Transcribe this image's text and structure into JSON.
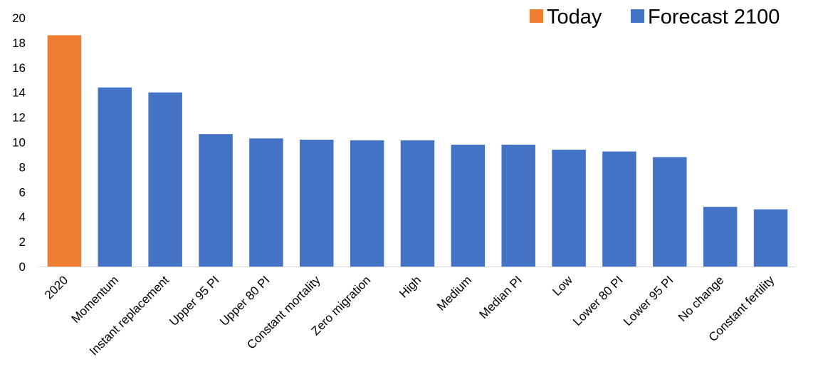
{
  "chart_data": {
    "type": "bar",
    "title": "",
    "xlabel": "",
    "ylabel": "",
    "ylim": [
      0,
      20
    ],
    "yticks": [
      0,
      2,
      4,
      6,
      8,
      10,
      12,
      14,
      16,
      18,
      20
    ],
    "grid": false,
    "legend_position": "top-right",
    "categories": [
      "2020",
      "Momentum",
      "Instant replacement",
      "Upper 95 PI",
      "Upper 80 PI",
      "Constant mortality",
      "Zero migration",
      "High",
      "Medium",
      "Median PI",
      "Low",
      "Lower 80 PI",
      "Lower 95 PI",
      "No change",
      "Constant fertility"
    ],
    "values": [
      18.6,
      14.4,
      14.0,
      10.65,
      10.3,
      10.2,
      10.15,
      10.15,
      9.8,
      9.8,
      9.4,
      9.25,
      8.8,
      4.8,
      4.6
    ],
    "bar_series": [
      "Today",
      "Forecast 2100",
      "Forecast 2100",
      "Forecast 2100",
      "Forecast 2100",
      "Forecast 2100",
      "Forecast 2100",
      "Forecast 2100",
      "Forecast 2100",
      "Forecast 2100",
      "Forecast 2100",
      "Forecast 2100",
      "Forecast 2100",
      "Forecast 2100",
      "Forecast 2100"
    ],
    "legend": [
      {
        "name": "Today",
        "color": "#ED7D31"
      },
      {
        "name": "Forecast 2100",
        "color": "#4472C4"
      }
    ]
  }
}
